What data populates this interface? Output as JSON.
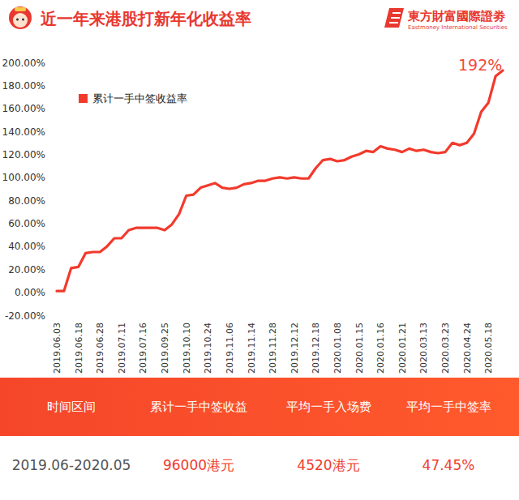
{
  "header": {
    "logo": {
      "name": "東方財富國際證劵",
      "subtitle": "Eastmoney International Securities"
    }
  },
  "chart_data": {
    "type": "line",
    "title": "近一年来港股打新年化收益率",
    "annotation": "192%",
    "categories": [
      "2019.06.03",
      null,
      null,
      "2019.06.18",
      null,
      null,
      "2019.06.28",
      null,
      null,
      "2019.07.11",
      null,
      null,
      "2019.07.16",
      null,
      null,
      "2019.09.25",
      null,
      null,
      "2019.10.10",
      null,
      null,
      "2019.10.24",
      null,
      null,
      "2019.11.06",
      null,
      null,
      "2019.11.14",
      null,
      null,
      "2019.11.28",
      null,
      null,
      "2019.12.12",
      null,
      null,
      "2019.12.18",
      null,
      null,
      "2020.01.08",
      null,
      null,
      "2020.01.15",
      null,
      null,
      "2020.01.16",
      null,
      null,
      "2020.01.21",
      null,
      null,
      "2020.03.13",
      null,
      null,
      "2020.03.23",
      null,
      null,
      "2020.04.24",
      null,
      null,
      "2020.05.18",
      null,
      null
    ],
    "series": [
      {
        "name": "累计一手中签收益率",
        "color": "#f23a2c",
        "values": [
          1,
          1,
          21,
          22,
          34,
          35,
          35,
          40,
          47,
          47,
          54,
          56,
          56,
          56,
          56,
          54,
          59,
          68,
          84,
          85,
          91,
          93,
          95,
          91,
          90,
          91,
          94,
          95,
          97,
          97,
          99,
          100,
          99,
          100,
          99,
          99,
          108,
          115,
          116,
          114,
          115,
          118,
          120,
          123,
          122,
          127,
          125,
          124,
          122,
          125,
          123,
          124,
          122,
          121,
          122,
          130,
          128,
          130,
          138,
          157,
          165,
          188,
          193
        ]
      }
    ],
    "ylim": [
      -20,
      200
    ],
    "yticks": [
      {
        "value": -20,
        "label": "-20.00%"
      },
      {
        "value": 0,
        "label": "0.00%"
      },
      {
        "value": 20,
        "label": "20.00%"
      },
      {
        "value": 40,
        "label": "40.00%"
      },
      {
        "value": 60,
        "label": "60.00%"
      },
      {
        "value": 80,
        "label": "80.00%"
      },
      {
        "value": 100,
        "label": "100.00%"
      },
      {
        "value": 120,
        "label": "120.00%"
      },
      {
        "value": 140,
        "label": "140.00%"
      },
      {
        "value": 160,
        "label": "160.00%"
      },
      {
        "value": 180,
        "label": "180.00%"
      },
      {
        "value": 200,
        "label": "200.00%"
      }
    ],
    "grid": false,
    "legend": "top-left"
  },
  "table": {
    "headers": [
      "时间区间",
      "累计一手中签收益",
      "平均一手入场费",
      "平均一手中签率"
    ],
    "rows": [
      [
        "2019.06-2020.05",
        "96000港元",
        "4520港元",
        "47.45%"
      ]
    ]
  }
}
